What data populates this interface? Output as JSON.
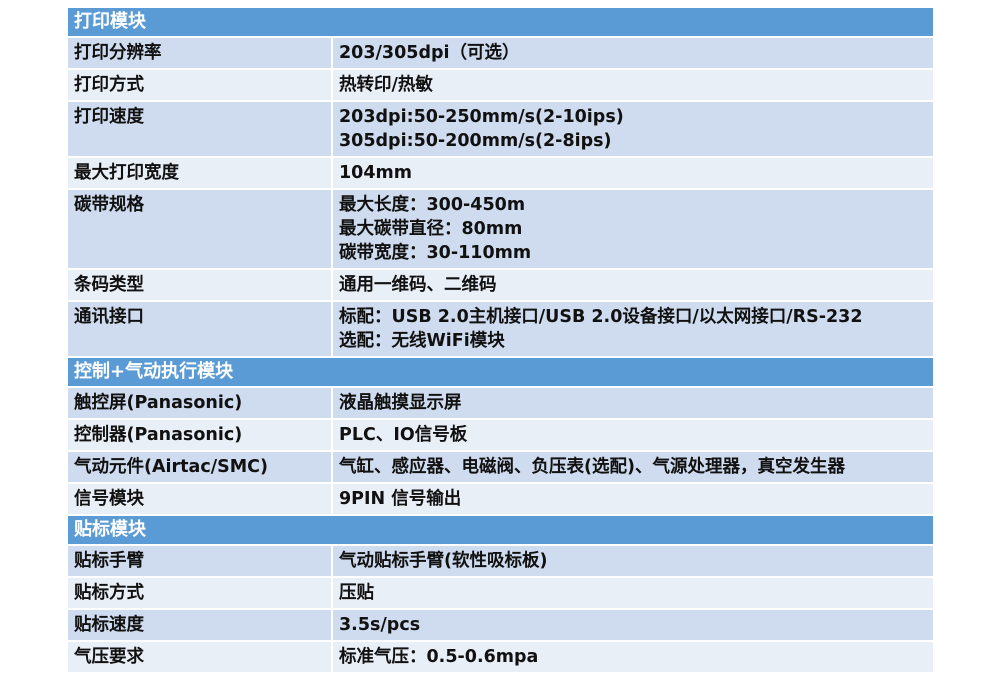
{
  "colors": {
    "section_header": "#5b9bd5",
    "row_dark": "#cfdbee",
    "row_light": "#e9eff7"
  },
  "sections": [
    {
      "title": "打印模块",
      "rows": [
        {
          "label": "打印分辨率",
          "values": [
            "203/305dpi（可选）"
          ]
        },
        {
          "label": "打印方式",
          "values": [
            "热转印/热敏"
          ]
        },
        {
          "label": "打印速度",
          "values": [
            "203dpi:50-250mm/s(2-10ips)",
            "305dpi:50-200mm/s(2-8ips)"
          ]
        },
        {
          "label": "最大打印宽度",
          "values": [
            "104mm"
          ]
        },
        {
          "label": "碳带规格",
          "values": [
            "最大长度：300-450m",
            "最大碳带直径：80mm",
            "碳带宽度：30-110mm"
          ]
        },
        {
          "label": "条码类型",
          "values": [
            "通用一维码、二维码"
          ]
        },
        {
          "label": "通讯接口",
          "values": [
            "标配：USB 2.0主机接口/USB 2.0设备接口/以太网接口/RS-232",
            "选配：无线WiFi模块"
          ]
        }
      ]
    },
    {
      "title": "控制+气动执行模块",
      "rows": [
        {
          "label": "触控屏(Panasonic)",
          "values": [
            "液晶触摸显示屏"
          ]
        },
        {
          "label": "控制器(Panasonic)",
          "values": [
            "PLC、IO信号板"
          ]
        },
        {
          "label": "气动元件(Airtac/SMC)",
          "values": [
            "气缸、感应器、电磁阀、负压表(选配)、气源处理器，真空发生器"
          ]
        },
        {
          "label": "信号模块",
          "values": [
            "9PIN 信号输出"
          ]
        }
      ]
    },
    {
      "title": "贴标模块",
      "rows": [
        {
          "label": "贴标手臂",
          "values": [
            "气动贴标手臂(软性吸标板)"
          ]
        },
        {
          "label": "贴标方式",
          "values": [
            "压贴"
          ]
        },
        {
          "label": "贴标速度",
          "values": [
            "3.5s/pcs"
          ]
        },
        {
          "label": "气压要求",
          "values": [
            "标准气压：0.5-0.6mpa"
          ]
        }
      ]
    }
  ]
}
